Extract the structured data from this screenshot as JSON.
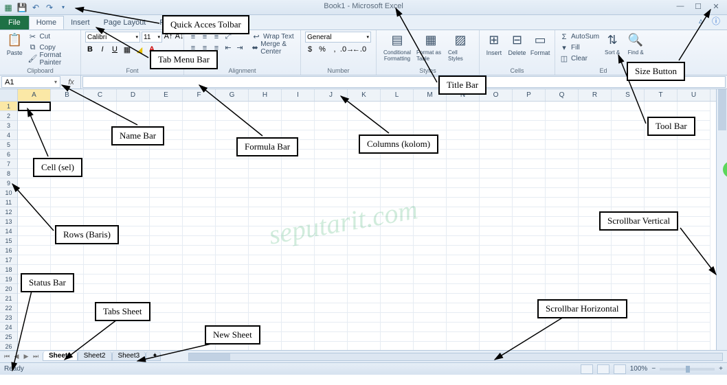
{
  "title": "Book1 - Microsoft Excel",
  "qat_icons": [
    "excel-icon",
    "save-icon",
    "undo-icon",
    "redo-icon",
    "customize-icon"
  ],
  "tabs": {
    "file": "File",
    "items": [
      "Home",
      "Insert",
      "Page Layout",
      "Form"
    ],
    "active": "Home"
  },
  "ribbon": {
    "clipboard": {
      "label": "Clipboard",
      "paste": "Paste",
      "cut": "Cut",
      "copy": "Copy",
      "painter": "Format Painter"
    },
    "font": {
      "label": "Font",
      "name": "Calibri",
      "size": "11"
    },
    "alignment": {
      "label": "Alignment",
      "wrap": "Wrap Text",
      "merge": "Merge & Center"
    },
    "number": {
      "label": "Number",
      "format": "General"
    },
    "styles": {
      "label": "Styles",
      "cond": "Conditional Formatting",
      "table": "Format as Table",
      "cell": "Cell Styles"
    },
    "cells": {
      "label": "Cells",
      "insert": "Insert",
      "delete": "Delete",
      "format": "Format"
    },
    "editing": {
      "label": "Ed",
      "autosum": "AutoSum",
      "fill": "Fill",
      "clear": "Clear",
      "sort": "Sort &",
      "find": "Find &"
    }
  },
  "namebox": "A1",
  "columns": [
    "A",
    "B",
    "C",
    "D",
    "E",
    "F",
    "G",
    "H",
    "I",
    "J",
    "K",
    "L",
    "M",
    "N",
    "O",
    "P",
    "Q",
    "R",
    "S",
    "T",
    "U"
  ],
  "rowcount": 26,
  "sheets": [
    "Sheet1",
    "Sheet2",
    "Sheet3"
  ],
  "status": {
    "ready": "Ready",
    "zoom": "100%"
  },
  "watermark": "seputarit.com",
  "callouts": {
    "qat": "Quick Acces Tolbar",
    "tabmenu": "Tab Menu Bar",
    "titlebar": "Title Bar",
    "sizebtn": "Size Button",
    "toolbar": "Tool Bar",
    "namebar": "Name Bar",
    "formulabar": "Formula Bar",
    "columns": "Columns (kolom)",
    "cell": "Cell (sel)",
    "rows": "Rows (Baris)",
    "statusbar": "Status Bar",
    "tabsheet": "Tabs Sheet",
    "newsheet": "New Sheet",
    "scrollv": "Scrollbar Vertical",
    "scrollh": "Scrollbar Horizontal"
  },
  "colors": {
    "callout_border": "#000000",
    "accent": "#1e7145",
    "grid_border": "#e6ecf3",
    "header_bg": "#eef3f8"
  }
}
